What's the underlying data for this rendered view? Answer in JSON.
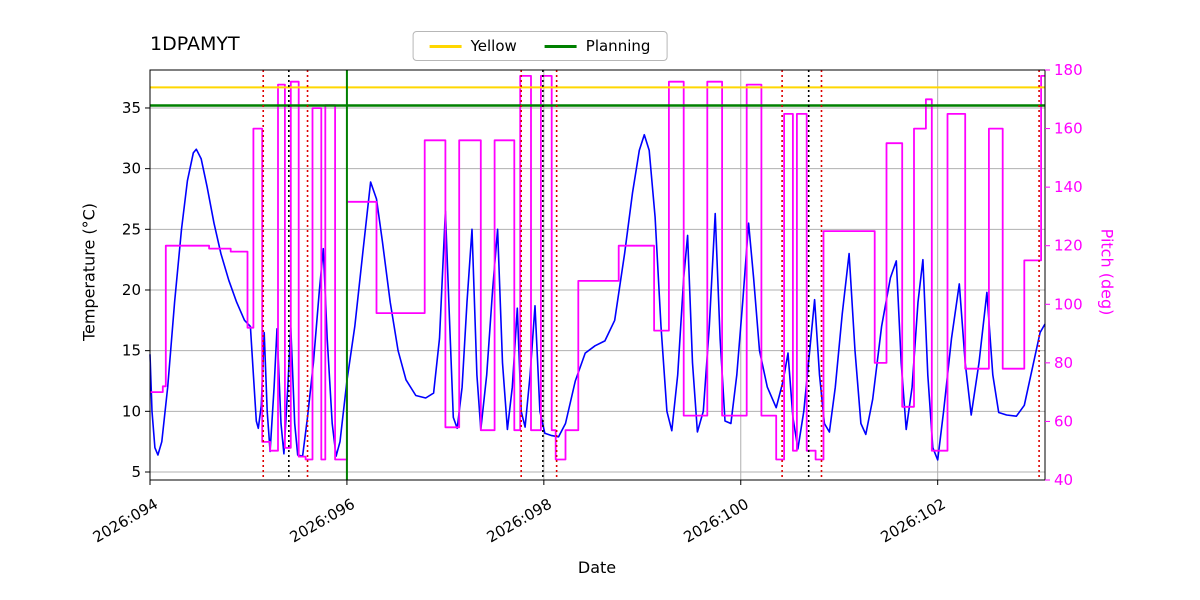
{
  "chart_data": {
    "type": "line",
    "title": "1DPAMYT",
    "xlabel": "Date",
    "ylabel_left": "Temperature (°C)",
    "ylabel_right": "Pitch (deg)",
    "x_range": [
      94.0,
      103.09
    ],
    "temp_range": [
      4.34,
      38.13
    ],
    "pitch_range": [
      40,
      180
    ],
    "x_ticks": [
      {
        "value": 94,
        "label": "2026:094"
      },
      {
        "value": 96,
        "label": "2026:096"
      },
      {
        "value": 98,
        "label": "2026:098"
      },
      {
        "value": 100,
        "label": "2026:100"
      },
      {
        "value": 102,
        "label": "2026:102"
      }
    ],
    "temp_ticks": [
      5,
      10,
      15,
      20,
      25,
      30,
      35
    ],
    "pitch_ticks": [
      40,
      60,
      80,
      100,
      120,
      140,
      160,
      180
    ],
    "legend": [
      {
        "label": "Yellow",
        "color": "#FFD700"
      },
      {
        "label": "Planning",
        "color": "#008000"
      }
    ],
    "grid_color": "#b0b0b0",
    "hlines": [
      {
        "name": "yellow-limit-line",
        "value": 36.7,
        "color": "#FFD700",
        "width": 2
      },
      {
        "name": "planning-limit-line",
        "value": 35.2,
        "color": "#008000",
        "width": 2.5
      }
    ],
    "vlines": [
      {
        "x": 96.0,
        "color": "#008000",
        "style": "solid",
        "name": "planning-vline"
      },
      {
        "x": 95.15,
        "color": "#dd0000",
        "style": "dotted",
        "name": "red-event-vline"
      },
      {
        "x": 95.6,
        "color": "#dd0000",
        "style": "dotted",
        "name": "red-event-vline"
      },
      {
        "x": 97.77,
        "color": "#dd0000",
        "style": "dotted",
        "name": "red-event-vline"
      },
      {
        "x": 98.13,
        "color": "#dd0000",
        "style": "dotted",
        "name": "red-event-vline"
      },
      {
        "x": 100.42,
        "color": "#dd0000",
        "style": "dotted",
        "name": "red-event-vline"
      },
      {
        "x": 100.82,
        "color": "#dd0000",
        "style": "dotted",
        "name": "red-event-vline"
      },
      {
        "x": 103.03,
        "color": "#dd0000",
        "style": "dotted",
        "name": "red-event-vline"
      },
      {
        "x": 95.41,
        "color": "#000000",
        "style": "dotted",
        "name": "black-event-vline"
      },
      {
        "x": 97.99,
        "color": "#000000",
        "style": "dotted",
        "name": "black-event-vline"
      },
      {
        "x": 100.69,
        "color": "#000000",
        "style": "dotted",
        "name": "black-event-vline"
      }
    ],
    "series": [
      {
        "name": "temperature",
        "color": "#0000ff",
        "axis": "temp",
        "mode": "linear",
        "width": 1.6,
        "points": [
          [
            94.0,
            14.7
          ],
          [
            94.02,
            10.0
          ],
          [
            94.05,
            7.0
          ],
          [
            94.08,
            6.4
          ],
          [
            94.12,
            7.5
          ],
          [
            94.18,
            12.0
          ],
          [
            94.25,
            19.0
          ],
          [
            94.32,
            25.0
          ],
          [
            94.38,
            29.0
          ],
          [
            94.44,
            31.3
          ],
          [
            94.47,
            31.6
          ],
          [
            94.52,
            30.8
          ],
          [
            94.58,
            28.5
          ],
          [
            94.65,
            25.5
          ],
          [
            94.72,
            23.0
          ],
          [
            94.8,
            20.8
          ],
          [
            94.88,
            19.0
          ],
          [
            94.96,
            17.5
          ],
          [
            95.02,
            17.0
          ],
          [
            95.05,
            13.0
          ],
          [
            95.08,
            9.2
          ],
          [
            95.1,
            8.6
          ],
          [
            95.13,
            10.5
          ],
          [
            95.16,
            16.5
          ],
          [
            95.19,
            10.0
          ],
          [
            95.22,
            6.7
          ],
          [
            95.26,
            12.0
          ],
          [
            95.29,
            16.8
          ],
          [
            95.33,
            9.0
          ],
          [
            95.36,
            6.5
          ],
          [
            95.4,
            12.0
          ],
          [
            95.43,
            16.9
          ],
          [
            95.47,
            9.0
          ],
          [
            95.5,
            6.4
          ],
          [
            95.55,
            6.3
          ],
          [
            95.6,
            9.5
          ],
          [
            95.66,
            14.0
          ],
          [
            95.72,
            20.0
          ],
          [
            95.76,
            23.4
          ],
          [
            95.8,
            16.0
          ],
          [
            95.85,
            9.0
          ],
          [
            95.89,
            6.3
          ],
          [
            95.93,
            7.5
          ],
          [
            96.0,
            12.5
          ],
          [
            96.08,
            17.0
          ],
          [
            96.16,
            23.0
          ],
          [
            96.24,
            28.9
          ],
          [
            96.3,
            27.5
          ],
          [
            96.36,
            24.0
          ],
          [
            96.44,
            19.0
          ],
          [
            96.52,
            15.0
          ],
          [
            96.6,
            12.6
          ],
          [
            96.7,
            11.3
          ],
          [
            96.8,
            11.1
          ],
          [
            96.88,
            11.5
          ],
          [
            96.94,
            16.0
          ],
          [
            97.0,
            26.5
          ],
          [
            97.04,
            18.0
          ],
          [
            97.08,
            9.5
          ],
          [
            97.12,
            8.6
          ],
          [
            97.17,
            12.0
          ],
          [
            97.22,
            19.0
          ],
          [
            97.27,
            25.0
          ],
          [
            97.32,
            13.0
          ],
          [
            97.36,
            8.5
          ],
          [
            97.42,
            13.0
          ],
          [
            97.48,
            20.0
          ],
          [
            97.53,
            25.0
          ],
          [
            97.58,
            14.0
          ],
          [
            97.63,
            8.5
          ],
          [
            97.68,
            12.0
          ],
          [
            97.73,
            18.5
          ],
          [
            97.77,
            10.0
          ],
          [
            97.81,
            8.7
          ],
          [
            97.86,
            13.0
          ],
          [
            97.91,
            18.7
          ],
          [
            97.96,
            10.0
          ],
          [
            98.01,
            8.2
          ],
          [
            98.08,
            8.0
          ],
          [
            98.15,
            7.9
          ],
          [
            98.22,
            9.0
          ],
          [
            98.32,
            12.5
          ],
          [
            98.42,
            14.8
          ],
          [
            98.52,
            15.4
          ],
          [
            98.62,
            15.8
          ],
          [
            98.72,
            17.5
          ],
          [
            98.82,
            23.0
          ],
          [
            98.9,
            28.0
          ],
          [
            98.97,
            31.5
          ],
          [
            99.02,
            32.8
          ],
          [
            99.07,
            31.5
          ],
          [
            99.13,
            26.0
          ],
          [
            99.19,
            17.0
          ],
          [
            99.25,
            10.0
          ],
          [
            99.3,
            8.4
          ],
          [
            99.36,
            13.0
          ],
          [
            99.42,
            21.0
          ],
          [
            99.46,
            24.5
          ],
          [
            99.51,
            14.0
          ],
          [
            99.56,
            8.3
          ],
          [
            99.62,
            10.0
          ],
          [
            99.68,
            17.0
          ],
          [
            99.74,
            26.3
          ],
          [
            99.79,
            16.0
          ],
          [
            99.84,
            9.2
          ],
          [
            99.9,
            9.0
          ],
          [
            99.96,
            13.0
          ],
          [
            100.02,
            19.0
          ],
          [
            100.08,
            25.5
          ],
          [
            100.13,
            21.0
          ],
          [
            100.19,
            15.0
          ],
          [
            100.27,
            12.0
          ],
          [
            100.36,
            10.3
          ],
          [
            100.43,
            12.5
          ],
          [
            100.48,
            14.8
          ],
          [
            100.53,
            9.5
          ],
          [
            100.58,
            6.9
          ],
          [
            100.64,
            10.0
          ],
          [
            100.7,
            15.0
          ],
          [
            100.75,
            19.2
          ],
          [
            100.8,
            13.0
          ],
          [
            100.85,
            9.0
          ],
          [
            100.9,
            8.3
          ],
          [
            100.96,
            12.0
          ],
          [
            101.03,
            18.0
          ],
          [
            101.1,
            23.0
          ],
          [
            101.16,
            15.0
          ],
          [
            101.22,
            9.0
          ],
          [
            101.27,
            8.1
          ],
          [
            101.34,
            11.0
          ],
          [
            101.43,
            17.0
          ],
          [
            101.52,
            21.0
          ],
          [
            101.58,
            22.4
          ],
          [
            101.63,
            14.0
          ],
          [
            101.68,
            8.5
          ],
          [
            101.74,
            12.0
          ],
          [
            101.8,
            19.0
          ],
          [
            101.85,
            22.5
          ],
          [
            101.9,
            13.0
          ],
          [
            101.95,
            7.0
          ],
          [
            102.0,
            6.0
          ],
          [
            102.06,
            10.0
          ],
          [
            102.14,
            16.0
          ],
          [
            102.22,
            20.5
          ],
          [
            102.28,
            14.0
          ],
          [
            102.34,
            9.7
          ],
          [
            102.42,
            14.0
          ],
          [
            102.5,
            19.8
          ],
          [
            102.56,
            13.0
          ],
          [
            102.62,
            9.9
          ],
          [
            102.7,
            9.7
          ],
          [
            102.8,
            9.6
          ],
          [
            102.88,
            10.5
          ],
          [
            102.96,
            13.5
          ],
          [
            103.04,
            16.5
          ],
          [
            103.09,
            17.2
          ]
        ]
      },
      {
        "name": "pitch",
        "color": "#ff00ff",
        "axis": "pitch",
        "mode": "step",
        "width": 1.8,
        "points": [
          [
            94.0,
            70
          ],
          [
            94.13,
            72
          ],
          [
            94.16,
            120
          ],
          [
            94.6,
            119
          ],
          [
            94.82,
            118
          ],
          [
            94.99,
            92
          ],
          [
            95.05,
            160
          ],
          [
            95.14,
            53
          ],
          [
            95.22,
            50
          ],
          [
            95.3,
            175
          ],
          [
            95.37,
            51
          ],
          [
            95.43,
            176
          ],
          [
            95.51,
            48
          ],
          [
            95.58,
            47
          ],
          [
            95.65,
            167
          ],
          [
            95.74,
            47
          ],
          [
            95.78,
            168
          ],
          [
            95.88,
            47
          ],
          [
            96.0,
            135
          ],
          [
            96.3,
            97
          ],
          [
            96.79,
            156
          ],
          [
            97.0,
            58
          ],
          [
            97.14,
            156
          ],
          [
            97.36,
            57
          ],
          [
            97.5,
            156
          ],
          [
            97.7,
            57
          ],
          [
            97.76,
            178
          ],
          [
            97.87,
            57
          ],
          [
            97.97,
            178
          ],
          [
            98.08,
            57
          ],
          [
            98.12,
            47
          ],
          [
            98.22,
            57
          ],
          [
            98.35,
            108
          ],
          [
            98.76,
            120
          ],
          [
            99.12,
            91
          ],
          [
            99.27,
            176
          ],
          [
            99.42,
            62
          ],
          [
            99.66,
            176
          ],
          [
            99.81,
            62
          ],
          [
            100.06,
            175
          ],
          [
            100.21,
            62
          ],
          [
            100.36,
            47
          ],
          [
            100.44,
            165
          ],
          [
            100.53,
            50
          ],
          [
            100.57,
            165
          ],
          [
            100.67,
            50
          ],
          [
            100.76,
            47
          ],
          [
            100.84,
            125
          ],
          [
            101.36,
            80
          ],
          [
            101.48,
            155
          ],
          [
            101.64,
            65
          ],
          [
            101.76,
            160
          ],
          [
            101.88,
            170
          ],
          [
            101.94,
            50
          ],
          [
            102.1,
            165
          ],
          [
            102.28,
            78
          ],
          [
            102.52,
            160
          ],
          [
            102.66,
            78
          ],
          [
            102.88,
            115
          ],
          [
            103.05,
            178
          ]
        ]
      }
    ]
  }
}
